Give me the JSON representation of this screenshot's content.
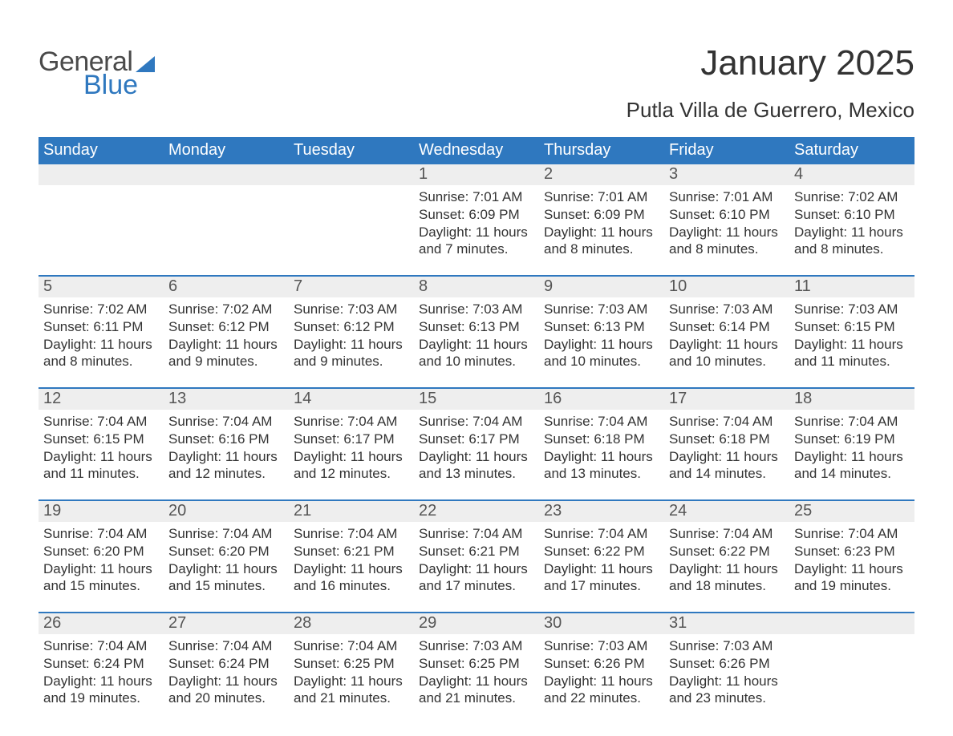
{
  "brand": {
    "word1": "General",
    "word2": "Blue"
  },
  "colors": {
    "brand_gray": "#4a4a4a",
    "brand_blue": "#2f78bf",
    "header_bg": "#2f78bf",
    "header_text": "#ffffff",
    "daynum_bg": "#eeeeee",
    "daynum_text": "#555555",
    "body_text": "#333333",
    "rule": "#2f78bf",
    "page_bg": "#ffffff"
  },
  "typography": {
    "title_fontsize": 44,
    "subtitle_fontsize": 26,
    "dayheader_fontsize": 20,
    "daynum_fontsize": 20,
    "cell_fontsize": 17,
    "logo_fontsize": 34
  },
  "title": "January 2025",
  "subtitle": "Putla Villa de Guerrero, Mexico",
  "day_names": [
    "Sunday",
    "Monday",
    "Tuesday",
    "Wednesday",
    "Thursday",
    "Friday",
    "Saturday"
  ],
  "weeks": [
    [
      {
        "day": "",
        "sunrise": "",
        "sunset": "",
        "daylight": ""
      },
      {
        "day": "",
        "sunrise": "",
        "sunset": "",
        "daylight": ""
      },
      {
        "day": "",
        "sunrise": "",
        "sunset": "",
        "daylight": ""
      },
      {
        "day": "1",
        "sunrise": "Sunrise: 7:01 AM",
        "sunset": "Sunset: 6:09 PM",
        "daylight": "Daylight: 11 hours and 7 minutes."
      },
      {
        "day": "2",
        "sunrise": "Sunrise: 7:01 AM",
        "sunset": "Sunset: 6:09 PM",
        "daylight": "Daylight: 11 hours and 8 minutes."
      },
      {
        "day": "3",
        "sunrise": "Sunrise: 7:01 AM",
        "sunset": "Sunset: 6:10 PM",
        "daylight": "Daylight: 11 hours and 8 minutes."
      },
      {
        "day": "4",
        "sunrise": "Sunrise: 7:02 AM",
        "sunset": "Sunset: 6:10 PM",
        "daylight": "Daylight: 11 hours and 8 minutes."
      }
    ],
    [
      {
        "day": "5",
        "sunrise": "Sunrise: 7:02 AM",
        "sunset": "Sunset: 6:11 PM",
        "daylight": "Daylight: 11 hours and 8 minutes."
      },
      {
        "day": "6",
        "sunrise": "Sunrise: 7:02 AM",
        "sunset": "Sunset: 6:12 PM",
        "daylight": "Daylight: 11 hours and 9 minutes."
      },
      {
        "day": "7",
        "sunrise": "Sunrise: 7:03 AM",
        "sunset": "Sunset: 6:12 PM",
        "daylight": "Daylight: 11 hours and 9 minutes."
      },
      {
        "day": "8",
        "sunrise": "Sunrise: 7:03 AM",
        "sunset": "Sunset: 6:13 PM",
        "daylight": "Daylight: 11 hours and 10 minutes."
      },
      {
        "day": "9",
        "sunrise": "Sunrise: 7:03 AM",
        "sunset": "Sunset: 6:13 PM",
        "daylight": "Daylight: 11 hours and 10 minutes."
      },
      {
        "day": "10",
        "sunrise": "Sunrise: 7:03 AM",
        "sunset": "Sunset: 6:14 PM",
        "daylight": "Daylight: 11 hours and 10 minutes."
      },
      {
        "day": "11",
        "sunrise": "Sunrise: 7:03 AM",
        "sunset": "Sunset: 6:15 PM",
        "daylight": "Daylight: 11 hours and 11 minutes."
      }
    ],
    [
      {
        "day": "12",
        "sunrise": "Sunrise: 7:04 AM",
        "sunset": "Sunset: 6:15 PM",
        "daylight": "Daylight: 11 hours and 11 minutes."
      },
      {
        "day": "13",
        "sunrise": "Sunrise: 7:04 AM",
        "sunset": "Sunset: 6:16 PM",
        "daylight": "Daylight: 11 hours and 12 minutes."
      },
      {
        "day": "14",
        "sunrise": "Sunrise: 7:04 AM",
        "sunset": "Sunset: 6:17 PM",
        "daylight": "Daylight: 11 hours and 12 minutes."
      },
      {
        "day": "15",
        "sunrise": "Sunrise: 7:04 AM",
        "sunset": "Sunset: 6:17 PM",
        "daylight": "Daylight: 11 hours and 13 minutes."
      },
      {
        "day": "16",
        "sunrise": "Sunrise: 7:04 AM",
        "sunset": "Sunset: 6:18 PM",
        "daylight": "Daylight: 11 hours and 13 minutes."
      },
      {
        "day": "17",
        "sunrise": "Sunrise: 7:04 AM",
        "sunset": "Sunset: 6:18 PM",
        "daylight": "Daylight: 11 hours and 14 minutes."
      },
      {
        "day": "18",
        "sunrise": "Sunrise: 7:04 AM",
        "sunset": "Sunset: 6:19 PM",
        "daylight": "Daylight: 11 hours and 14 minutes."
      }
    ],
    [
      {
        "day": "19",
        "sunrise": "Sunrise: 7:04 AM",
        "sunset": "Sunset: 6:20 PM",
        "daylight": "Daylight: 11 hours and 15 minutes."
      },
      {
        "day": "20",
        "sunrise": "Sunrise: 7:04 AM",
        "sunset": "Sunset: 6:20 PM",
        "daylight": "Daylight: 11 hours and 15 minutes."
      },
      {
        "day": "21",
        "sunrise": "Sunrise: 7:04 AM",
        "sunset": "Sunset: 6:21 PM",
        "daylight": "Daylight: 11 hours and 16 minutes."
      },
      {
        "day": "22",
        "sunrise": "Sunrise: 7:04 AM",
        "sunset": "Sunset: 6:21 PM",
        "daylight": "Daylight: 11 hours and 17 minutes."
      },
      {
        "day": "23",
        "sunrise": "Sunrise: 7:04 AM",
        "sunset": "Sunset: 6:22 PM",
        "daylight": "Daylight: 11 hours and 17 minutes."
      },
      {
        "day": "24",
        "sunrise": "Sunrise: 7:04 AM",
        "sunset": "Sunset: 6:22 PM",
        "daylight": "Daylight: 11 hours and 18 minutes."
      },
      {
        "day": "25",
        "sunrise": "Sunrise: 7:04 AM",
        "sunset": "Sunset: 6:23 PM",
        "daylight": "Daylight: 11 hours and 19 minutes."
      }
    ],
    [
      {
        "day": "26",
        "sunrise": "Sunrise: 7:04 AM",
        "sunset": "Sunset: 6:24 PM",
        "daylight": "Daylight: 11 hours and 19 minutes."
      },
      {
        "day": "27",
        "sunrise": "Sunrise: 7:04 AM",
        "sunset": "Sunset: 6:24 PM",
        "daylight": "Daylight: 11 hours and 20 minutes."
      },
      {
        "day": "28",
        "sunrise": "Sunrise: 7:04 AM",
        "sunset": "Sunset: 6:25 PM",
        "daylight": "Daylight: 11 hours and 21 minutes."
      },
      {
        "day": "29",
        "sunrise": "Sunrise: 7:03 AM",
        "sunset": "Sunset: 6:25 PM",
        "daylight": "Daylight: 11 hours and 21 minutes."
      },
      {
        "day": "30",
        "sunrise": "Sunrise: 7:03 AM",
        "sunset": "Sunset: 6:26 PM",
        "daylight": "Daylight: 11 hours and 22 minutes."
      },
      {
        "day": "31",
        "sunrise": "Sunrise: 7:03 AM",
        "sunset": "Sunset: 6:26 PM",
        "daylight": "Daylight: 11 hours and 23 minutes."
      },
      {
        "day": "",
        "sunrise": "",
        "sunset": "",
        "daylight": ""
      }
    ]
  ]
}
